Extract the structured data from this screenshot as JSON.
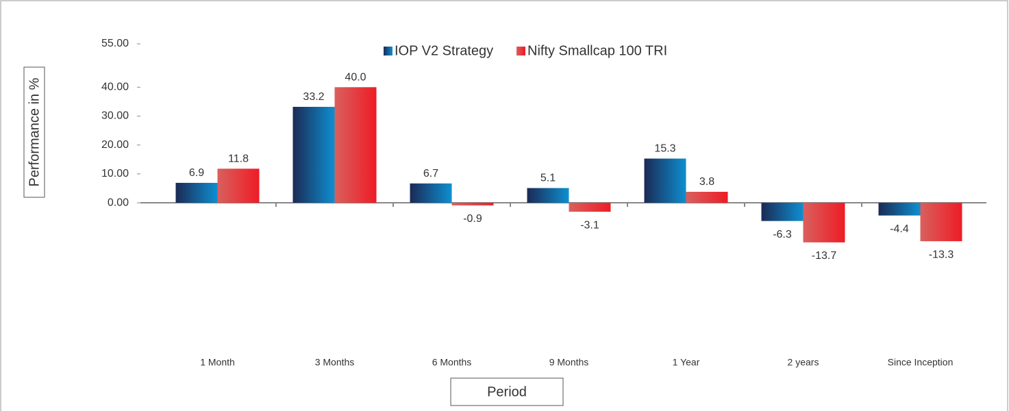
{
  "chart_data": {
    "type": "bar",
    "x_label": "Period",
    "y_label": "Performance in %",
    "categories": [
      "1 Month",
      "3 Months",
      "6 Months",
      "9 Months",
      "1 Year",
      "2 years",
      "Since Inception"
    ],
    "series": [
      {
        "name": "IOP V2 Strategy",
        "color": "#0e8fd0",
        "values": [
          6.9,
          33.2,
          6.7,
          5.1,
          15.3,
          -6.3,
          -4.4
        ],
        "value_labels": [
          "6.9",
          "33.2",
          "6.7",
          "5.1",
          "15.3",
          "-6.3",
          "-4.4"
        ]
      },
      {
        "name": "Nifty Smallcap 100 TRI",
        "color": "#ee1c25",
        "values": [
          11.8,
          40.0,
          -0.9,
          -3.1,
          3.8,
          -13.7,
          -13.3
        ],
        "value_labels": [
          "11.8",
          "40.0",
          "-0.9",
          "-3.1",
          "3.8",
          "-13.7",
          "-13.3"
        ]
      }
    ],
    "ylim": [
      -50,
      55
    ],
    "yticks": [
      {
        "value": 0,
        "label": "0.00"
      },
      {
        "value": 10,
        "label": "10.00"
      },
      {
        "value": 20,
        "label": "20.00"
      },
      {
        "value": 30,
        "label": "30.00"
      },
      {
        "value": 40,
        "label": "40.00"
      },
      {
        "value": 55,
        "label": "55.00"
      }
    ]
  }
}
